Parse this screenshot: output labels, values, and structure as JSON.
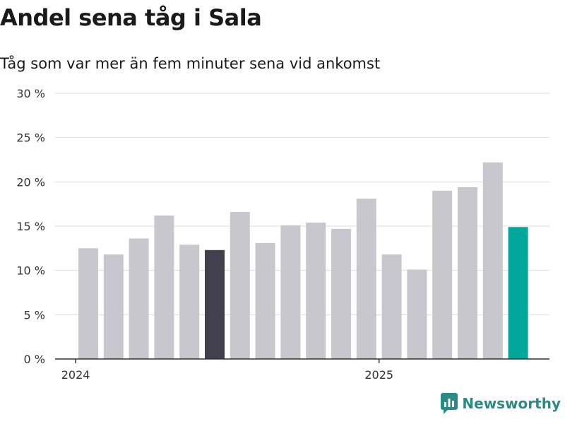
{
  "title": "Andel sena tåg i Sala",
  "subtitle": "Tåg som var mer än fem minuter sena vid ankomst",
  "brand": "Newsworthy",
  "colors": {
    "bar_default": "#c8c7cd",
    "bar_highlight": "#42404c",
    "bar_latest": "#00a79b",
    "grid": "#dddddd",
    "axis": "#333333",
    "brand": "#2a8a86"
  },
  "chart_data": {
    "type": "bar",
    "x_tick_labels": [
      "2024",
      "2025"
    ],
    "y_tick_labels": [
      "0 %",
      "5 %",
      "10 %",
      "15 %",
      "20 %",
      "25 %",
      "30 %"
    ],
    "ylim": [
      0,
      30
    ],
    "y_unit": "%",
    "grid": true,
    "months": [
      "2024-01",
      "2024-02",
      "2024-03",
      "2024-04",
      "2024-05",
      "2024-06",
      "2024-07",
      "2024-08",
      "2024-09",
      "2024-10",
      "2024-11",
      "2024-12",
      "2025-01",
      "2025-02",
      "2025-03",
      "2025-04",
      "2025-05",
      "2025-06"
    ],
    "values": [
      12.5,
      11.8,
      13.6,
      16.2,
      12.9,
      12.3,
      16.6,
      13.1,
      15.1,
      15.4,
      14.7,
      18.1,
      11.8,
      10.1,
      19.0,
      19.4,
      22.2,
      14.9
    ],
    "highlight": [
      "default",
      "default",
      "default",
      "default",
      "default",
      "highlight",
      "default",
      "default",
      "default",
      "default",
      "default",
      "default",
      "default",
      "default",
      "default",
      "default",
      "default",
      "latest"
    ]
  }
}
